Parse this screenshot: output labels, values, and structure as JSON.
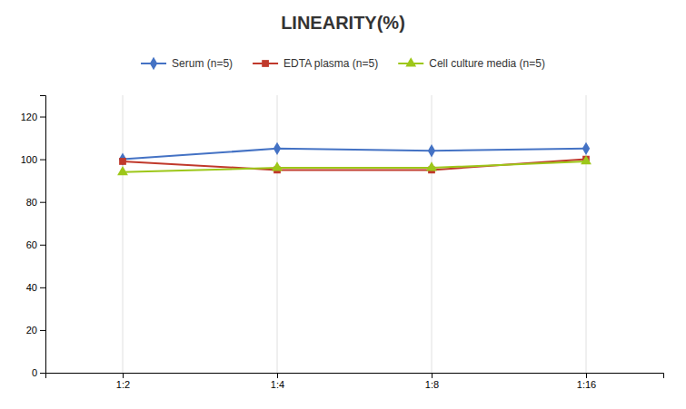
{
  "chart_data": {
    "type": "line",
    "title": "LINEARITY(%)",
    "categories": [
      "1:2",
      "1:4",
      "1:8",
      "1:16"
    ],
    "series": [
      {
        "name": "Serum (n=5)",
        "color": "#4472C4",
        "marker": "diamond",
        "values": [
          100,
          105,
          104,
          105
        ]
      },
      {
        "name": "EDTA plasma (n=5)",
        "color": "#C0392B",
        "marker": "square",
        "values": [
          99,
          95,
          95,
          100
        ]
      },
      {
        "name": "Cell culture media (n=5)",
        "color": "#9DC719",
        "marker": "triangle",
        "values": [
          94,
          96,
          96,
          99
        ]
      }
    ],
    "ylim": [
      0,
      130
    ],
    "yticks": [
      0,
      20,
      40,
      60,
      80,
      100,
      120
    ],
    "grid": "x",
    "legend": "top"
  }
}
